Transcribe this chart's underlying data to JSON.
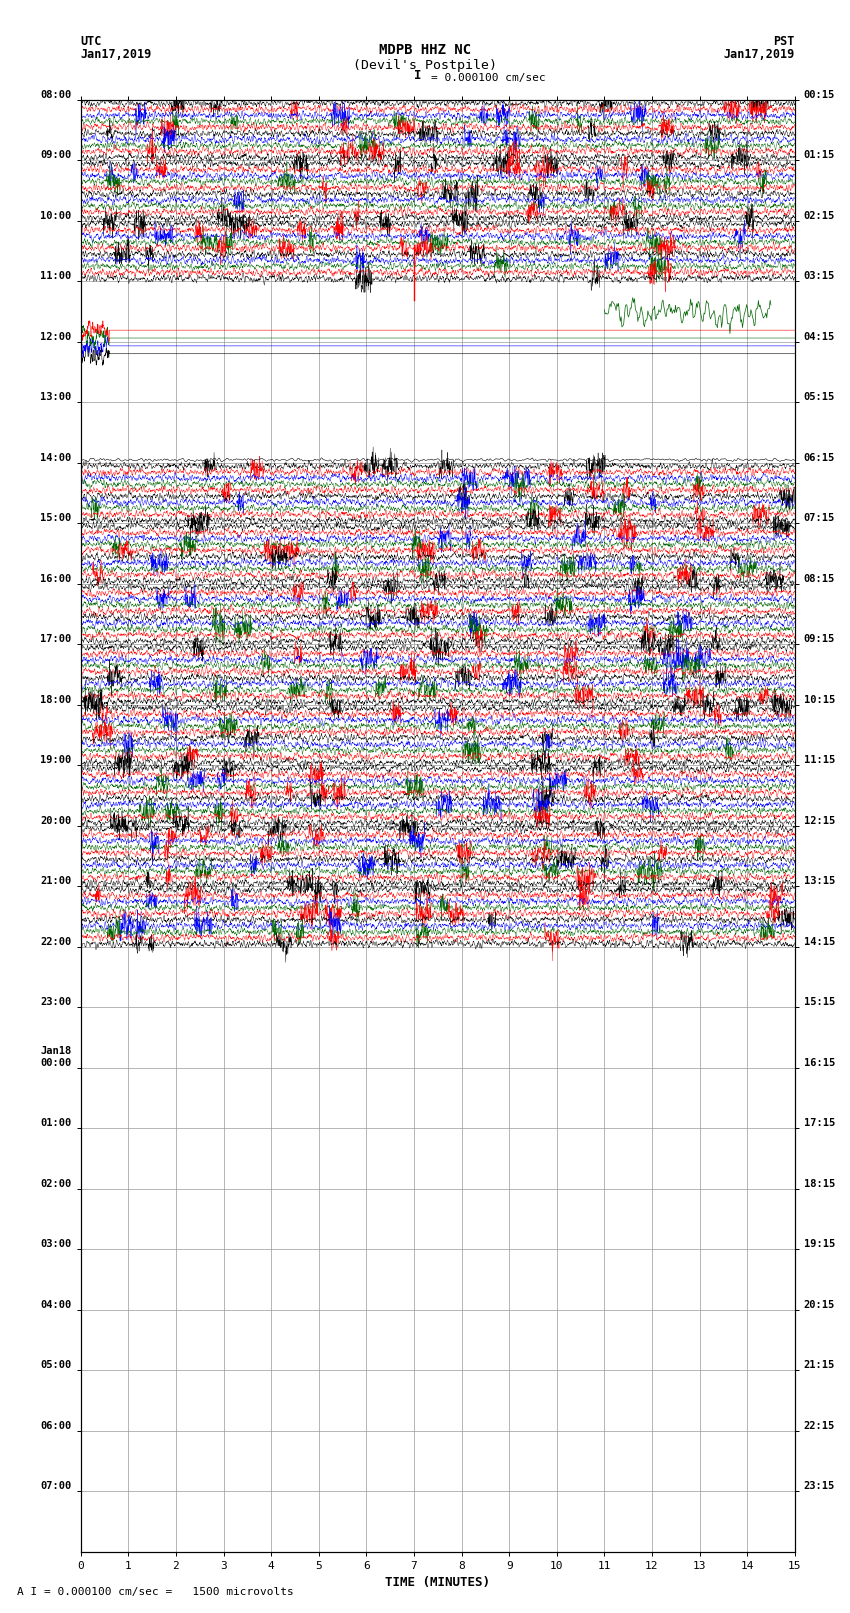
{
  "title_line1": "MDPB HHZ NC",
  "title_line2": "(Devil's Postpile)",
  "scale_label": "= 0.000100 cm/sec",
  "footer_label": "A I = 0.000100 cm/sec =   1500 microvolts",
  "xlabel": "TIME (MINUTES)",
  "bg_color": "#ffffff",
  "grid_color": "#999999",
  "trace_colors_high": [
    "#ff0000",
    "#0000ff",
    "#006400",
    "#000000"
  ],
  "trace_colors_low": [
    "#000000",
    "#0000ff",
    "#006400",
    "#ff0000"
  ],
  "utc_times": [
    "08:00",
    "09:00",
    "10:00",
    "11:00",
    "12:00",
    "13:00",
    "14:00",
    "15:00",
    "16:00",
    "17:00",
    "18:00",
    "19:00",
    "20:00",
    "21:00",
    "22:00",
    "23:00",
    "Jan18\n00:00",
    "01:00",
    "02:00",
    "03:00",
    "04:00",
    "05:00",
    "06:00",
    "07:00"
  ],
  "pst_times": [
    "00:15",
    "01:15",
    "02:15",
    "03:15",
    "04:15",
    "05:15",
    "06:15",
    "07:15",
    "08:15",
    "09:15",
    "10:15",
    "11:15",
    "12:15",
    "13:15",
    "14:15",
    "15:15",
    "16:15",
    "17:15",
    "18:15",
    "19:15",
    "20:15",
    "21:15",
    "22:15",
    "23:15"
  ],
  "n_rows": 24,
  "n_minutes": 15,
  "row_activity": [
    2,
    2,
    2,
    1,
    0,
    0,
    2,
    2,
    2,
    2,
    2,
    2,
    2,
    2,
    0,
    0,
    0,
    0,
    0,
    0,
    0,
    0,
    0,
    0
  ],
  "n_subtraces": 3,
  "samples": 3000
}
